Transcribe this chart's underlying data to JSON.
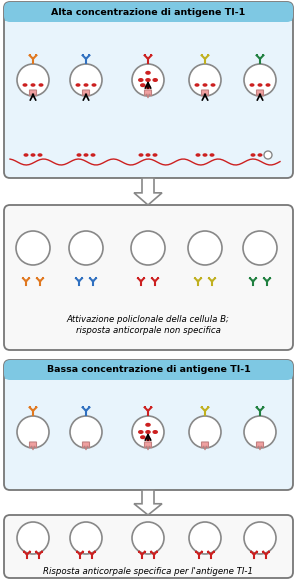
{
  "title_high": "Alta concentrazione di antigene TI-1",
  "title_low": "Bassa concentrazione di antigene TI-1",
  "caption_polyclonal": "Attivazione policlonale della cellula B;\nrisposta anticorpale non specifica",
  "caption_specific": "Risposta anticorpale specifica per l'antigene TI-1",
  "bg_color": "#ffffff",
  "header_bg": "#87ceeb",
  "box_border": "#555555",
  "cell_colors": [
    "#e07820",
    "#3070c0",
    "#cc2020",
    "#c0b020",
    "#208040"
  ],
  "red_color": "#cc2020",
  "arrow_color": "#dddddd",
  "arrow_border": "#888888",
  "cell_fill": "#ffffff",
  "cell_border": "#888888",
  "receptor_pink": "#f0a0a0",
  "lps_red": "#cc2020",
  "fig_width": 2.97,
  "fig_height": 5.81
}
